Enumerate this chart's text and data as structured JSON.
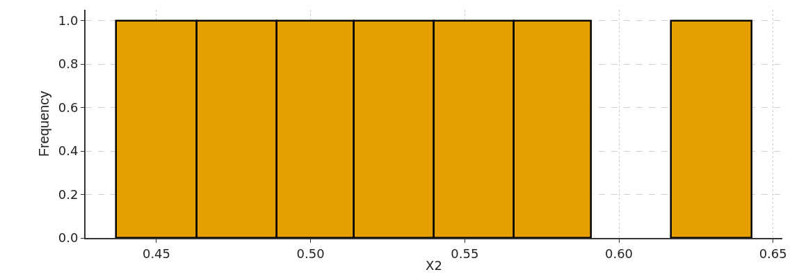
{
  "chart_data": {
    "type": "histogram",
    "xlabel": "X2",
    "ylabel": "Frequency",
    "bins": [
      0.437,
      0.463,
      0.489,
      0.514,
      0.54,
      0.566,
      0.591,
      0.617,
      0.643
    ],
    "values": [
      1,
      1,
      1,
      1,
      1,
      1,
      0,
      1
    ],
    "color": "#e5a000",
    "xlim": [
      0.427,
      0.653
    ],
    "xticks": [
      {
        "value": 0.45,
        "label": "0.45"
      },
      {
        "value": 0.5,
        "label": "0.50"
      },
      {
        "value": 0.55,
        "label": "0.55"
      },
      {
        "value": 0.6,
        "label": "0.60"
      },
      {
        "value": 0.65,
        "label": "0.65"
      }
    ],
    "ylim": [
      0,
      1.05
    ],
    "yticks": [
      {
        "value": 0,
        "label": "0.0"
      },
      {
        "value": 0.2,
        "label": "0.2"
      },
      {
        "value": 0.4,
        "label": "0.4"
      },
      {
        "value": 0.6,
        "label": "0.6"
      },
      {
        "value": 0.8,
        "label": "0.8"
      },
      {
        "value": 1.0,
        "label": "1.0"
      }
    ],
    "grid": true
  }
}
